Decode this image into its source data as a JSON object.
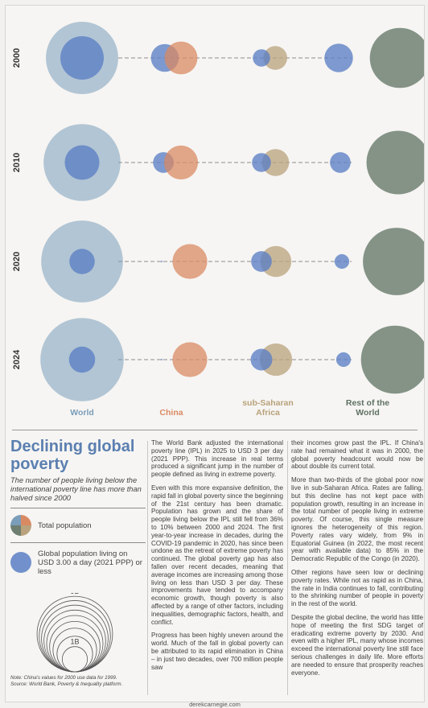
{
  "chart_data": {
    "type": "bubble",
    "years": [
      "2000",
      "2010",
      "2020",
      "2024"
    ],
    "regions": [
      {
        "name": "World",
        "label_lines": [
          "World"
        ],
        "color": "#7a9db9"
      },
      {
        "name": "China",
        "label_lines": [
          "China"
        ],
        "color": "#d98a63"
      },
      {
        "name": "sub-Saharan Africa",
        "label_lines": [
          "sub-Saharan",
          "Africa"
        ],
        "color": "#b9a27c"
      },
      {
        "name": "Rest of the World",
        "label_lines": [
          "Rest of the",
          "World"
        ],
        "color": "#5f7163"
      }
    ],
    "total_population_billions": [
      [
        6.1,
        1.26,
        0.66,
        4.2
      ],
      [
        6.9,
        1.34,
        0.85,
        4.7
      ],
      [
        7.8,
        1.41,
        1.12,
        5.3
      ],
      [
        8.1,
        1.41,
        1.22,
        5.4
      ]
    ],
    "poverty_population_billions": [
      [
        2.2,
        0.9,
        0.35,
        0.95
      ],
      [
        1.4,
        0.5,
        0.42,
        0.5
      ],
      [
        0.75,
        0.001,
        0.5,
        0.25
      ],
      [
        0.8,
        0.001,
        0.55,
        0.25
      ]
    ],
    "size_legend": [
      "9B",
      "1B"
    ]
  },
  "text": {
    "title": "Declining global poverty",
    "subtitle": "The number of people living below the international poverty line has more than halved since 2000",
    "legend_total": "Total population",
    "legend_poverty": "Global population living on USD 3.00 a day (2021 PPP) or less",
    "note": "Note: China's values for 2000 use data for 1999.",
    "source": "Source: World Bank, Poverty & Inequality platform.",
    "col1": [
      "The World Bank adjusted the international poverty line (IPL) in 2025 to USD 3 per day (2021 PPP). This increase in real terms produced a significant jump in the number of people defined as living in extreme poverty.",
      "Even with this more expansive definition, the rapid fall in global poverty since the beginning of the 21st century has been dramatic. Population has grown and the share of people living below the IPL still fell from 36% to 10% between 2000 and 2024. The first year-to-year increase in decades, during the COVID-19 pandemic in 2020, has since been undone as the retreat of extreme poverty has continued. The global poverty gap has also fallen over recent decades, meaning that average incomes are increasing among those living on less than USD 3 per day. These improvements have tended to accompany economic growth, though poverty is also affected by a range of other factors, including inequalities, demographic factors, health, and conflict.",
      "Progress has been highly uneven around the world. Much of the fall in global poverty can be attributed to its rapid elimination in China – in just two decades, over 700 million people saw"
    ],
    "col2": [
      "their incomes grow past the IPL. If China's rate had remained what it was in 2000, the global poverty headcount would now be about double its current total.",
      "More than two-thirds of the global poor now live in sub-Saharan Africa. Rates are falling, but this decline has not kept pace with population growth, resulting in an increase in the total number of people living in extreme poverty. Of course, this single measure ignores the heterogeneity of this region. Poverty rates vary widely, from 9% in Equatorial Guinea (in 2022, the most recent year with available data) to 85% in the Democratic Republic of the Congo (in 2020).",
      "Other regions have seen low or declining poverty rates. While not as rapid as in China, the rate in India continues to fall, contributing to the shrinking number of people in poverty in the rest of the world.",
      "Despite the global decline, the world has little hope of meeting the first SDG target of eradicating extreme poverty by 2030. And even with a higher IPL, many whose incomes exceed the international poverty line still face serious challenges in daily life. More efforts are needed to ensure that prosperity reaches everyone."
    ],
    "footer": "derekcarnegie.com"
  },
  "colors": {
    "world": "#7a9db9",
    "china": "#d98a63",
    "ssa": "#b9a27c",
    "rest": "#5f7163",
    "poverty": "#5b7fc4",
    "title": "#5b7fb0"
  }
}
